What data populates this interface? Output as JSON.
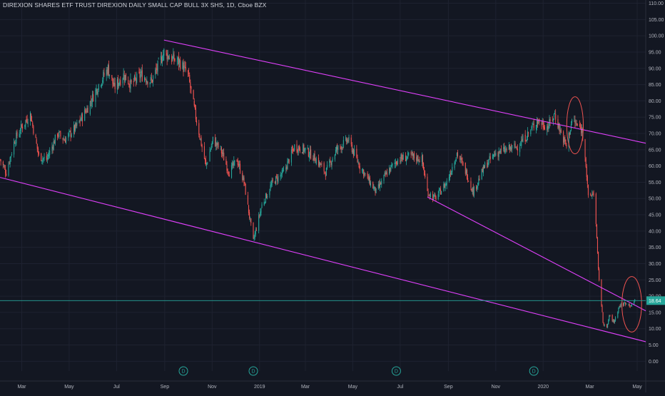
{
  "chart_data": {
    "type": "candlestick",
    "title": "DIREXION SHARES ETF TRUST DIREXION DAILY SMALL CAP BULL 3X SHS, 1D, Cboe BZX",
    "ylim": [
      -3,
      111
    ],
    "y_ticks": [
      "0.00",
      "5.00",
      "10.00",
      "15.00",
      "20.00",
      "25.00",
      "30.00",
      "35.00",
      "40.00",
      "45.00",
      "50.00",
      "55.00",
      "60.00",
      "65.00",
      "70.00",
      "75.00",
      "80.00",
      "85.00",
      "90.00",
      "95.00",
      "100.00",
      "105.00",
      "110.00"
    ],
    "x_ticks": [
      "Mar",
      "May",
      "Jul",
      "Sep",
      "Nov",
      "2019",
      "Mar",
      "May",
      "Jul",
      "Sep",
      "Nov",
      "2020",
      "Mar",
      "May"
    ],
    "x_tick_dates": [
      "2018-03",
      "2018-05",
      "2018-07",
      "2018-09",
      "2018-11",
      "2019-01",
      "2019-03",
      "2019-05",
      "2019-07",
      "2019-09",
      "2019-11",
      "2020-01",
      "2020-03",
      "2020-05"
    ],
    "x_range": [
      "2018-02",
      "2020-05-12"
    ],
    "price_path": [
      [
        "2018-02-01",
        62
      ],
      [
        "2018-02-09",
        58
      ],
      [
        "2018-02-20",
        68
      ],
      [
        "2018-03-01",
        72
      ],
      [
        "2018-03-12",
        76
      ],
      [
        "2018-03-23",
        63
      ],
      [
        "2018-04-02",
        62
      ],
      [
        "2018-04-16",
        70
      ],
      [
        "2018-04-25",
        68
      ],
      [
        "2018-05-10",
        72
      ],
      [
        "2018-05-25",
        78
      ],
      [
        "2018-06-08",
        85
      ],
      [
        "2018-06-20",
        90
      ],
      [
        "2018-06-28",
        84
      ],
      [
        "2018-07-10",
        88
      ],
      [
        "2018-07-20",
        85
      ],
      [
        "2018-08-01",
        88
      ],
      [
        "2018-08-15",
        86
      ],
      [
        "2018-08-31",
        95
      ],
      [
        "2018-09-10",
        93
      ],
      [
        "2018-09-20",
        92
      ],
      [
        "2018-10-01",
        88
      ],
      [
        "2018-10-11",
        75
      ],
      [
        "2018-10-24",
        60
      ],
      [
        "2018-11-02",
        68
      ],
      [
        "2018-11-12",
        65
      ],
      [
        "2018-11-23",
        58
      ],
      [
        "2018-12-03",
        62
      ],
      [
        "2018-12-12",
        55
      ],
      [
        "2018-12-24",
        37
      ],
      [
        "2019-01-04",
        48
      ],
      [
        "2019-01-18",
        55
      ],
      [
        "2019-02-01",
        58
      ],
      [
        "2019-02-15",
        66
      ],
      [
        "2019-03-01",
        65
      ],
      [
        "2019-03-15",
        62
      ],
      [
        "2019-03-27",
        58
      ],
      [
        "2019-04-10",
        65
      ],
      [
        "2019-04-25",
        68
      ],
      [
        "2019-05-10",
        60
      ],
      [
        "2019-05-31",
        52
      ],
      [
        "2019-06-14",
        58
      ],
      [
        "2019-06-28",
        62
      ],
      [
        "2019-07-15",
        63
      ],
      [
        "2019-07-29",
        62
      ],
      [
        "2019-08-05",
        52
      ],
      [
        "2019-08-15",
        50
      ],
      [
        "2019-08-30",
        55
      ],
      [
        "2019-09-12",
        64
      ],
      [
        "2019-09-24",
        58
      ],
      [
        "2019-10-03",
        52
      ],
      [
        "2019-10-18",
        60
      ],
      [
        "2019-11-01",
        64
      ],
      [
        "2019-11-15",
        65
      ],
      [
        "2019-11-29",
        66
      ],
      [
        "2019-12-13",
        70
      ],
      [
        "2019-12-24",
        74
      ],
      [
        "2020-01-07",
        72
      ],
      [
        "2020-01-16",
        76
      ],
      [
        "2020-01-24",
        70
      ],
      [
        "2020-01-31",
        66
      ],
      [
        "2020-02-07",
        74
      ],
      [
        "2020-02-20",
        71
      ],
      [
        "2020-02-24",
        64
      ],
      [
        "2020-02-28",
        50
      ],
      [
        "2020-03-06",
        52
      ],
      [
        "2020-03-09",
        42
      ],
      [
        "2020-03-12",
        28
      ],
      [
        "2020-03-18",
        12
      ],
      [
        "2020-03-23",
        10
      ],
      [
        "2020-03-26",
        14
      ],
      [
        "2020-04-01",
        12
      ],
      [
        "2020-04-08",
        17
      ],
      [
        "2020-04-17",
        18
      ],
      [
        "2020-04-24",
        17
      ],
      [
        "2020-04-28",
        18.64
      ]
    ],
    "trendlines": [
      {
        "from": [
          "2018-08-31",
          98.7
        ],
        "to": [
          "2020-05-12",
          67
        ]
      },
      {
        "from": [
          "2018-02-01",
          56.5
        ],
        "to": [
          "2020-05-12",
          6
        ]
      },
      {
        "from": [
          "2019-08-05",
          50.5
        ],
        "to": [
          "2020-05-12",
          15.5
        ]
      }
    ],
    "ellipses": [
      {
        "center": [
          "2020-02-11",
          72.5
        ],
        "span_days": 14,
        "span_price": 7
      },
      {
        "center": [
          "2020-04-24",
          17.5
        ],
        "span_days": 18,
        "span_price": 6.5
      }
    ],
    "last_price": 18.64,
    "last_price_label": "18.64",
    "dividend_markers": [
      {
        "date": "2018-09-25",
        "label": "D"
      },
      {
        "date": "2018-12-24",
        "label": "D"
      },
      {
        "date": "2019-06-26",
        "label": "D"
      },
      {
        "date": "2019-12-20",
        "label": "D"
      }
    ],
    "colors": {
      "background": "#131722",
      "grid": "#1e2230",
      "up": "#26a69a",
      "down": "#ef5350",
      "trendline": "#e040fb",
      "ellipse": "#ef5350",
      "last_price_line": "#26a69a",
      "axis_text": "#b2b5be",
      "dividend_marker": "#26a69a"
    }
  }
}
